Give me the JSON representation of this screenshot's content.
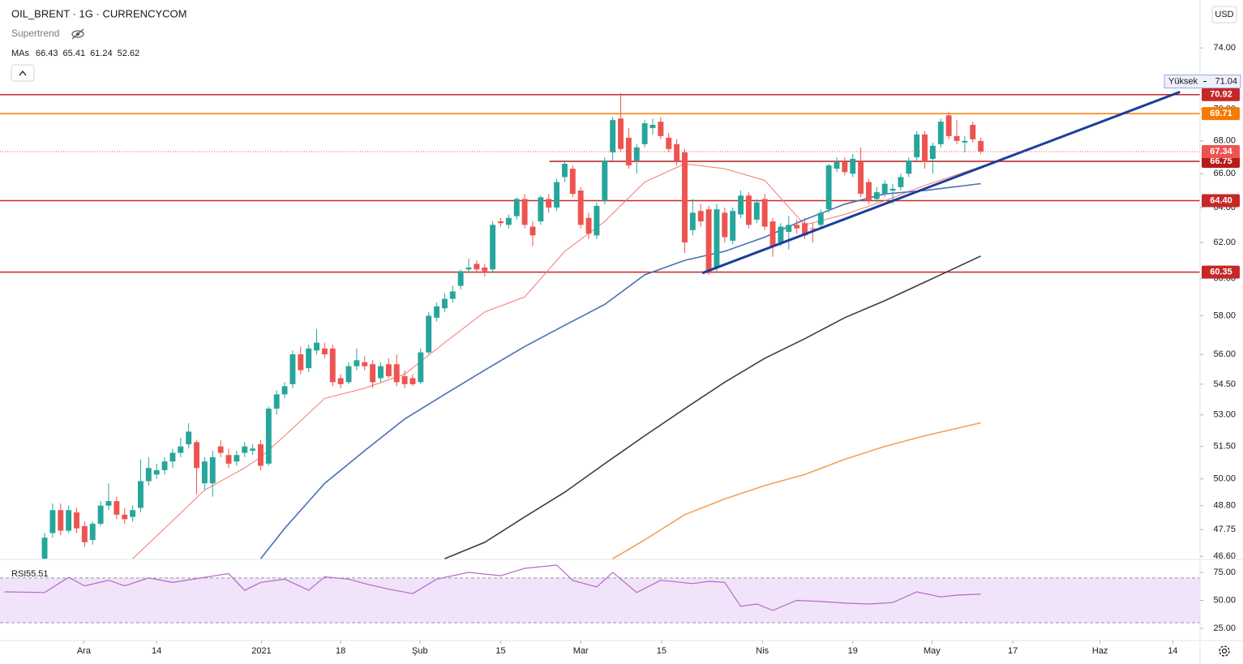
{
  "header": {
    "symbol": "OIL_BRENT · 1G · CURRENCYCOM",
    "indicator": "Supertrend",
    "mas_label": "MAs",
    "currency": "USD"
  },
  "chart_data": {
    "type": "candlestick",
    "log_scale": true,
    "grid": false,
    "up_color": "#26a69a",
    "down_color": "#ef5350",
    "ylim": [
      46.47,
      77.3
    ],
    "yticks": [
      {
        "value": 74,
        "label": "74.00"
      },
      {
        "value": 70,
        "label": "70.00"
      },
      {
        "value": 68,
        "label": "68.00"
      },
      {
        "value": 66,
        "label": "66.00"
      },
      {
        "value": 64,
        "label": "64.00"
      },
      {
        "value": 62,
        "label": "62.00"
      },
      {
        "value": 60,
        "label": "60.00"
      },
      {
        "value": 58,
        "label": "58.00"
      },
      {
        "value": 56,
        "label": "56.00"
      },
      {
        "value": 54.5,
        "label": "54.50"
      },
      {
        "value": 53,
        "label": "53.00"
      },
      {
        "value": 51.5,
        "label": "51.50"
      },
      {
        "value": 50,
        "label": "50.00"
      },
      {
        "value": 48.8,
        "label": "48.80"
      },
      {
        "value": 47.75,
        "label": "47.75"
      },
      {
        "value": 46.6,
        "label": "46.60"
      }
    ],
    "xlim": [
      -5.07,
      144.4
    ],
    "xticks": [
      {
        "value": 4.9,
        "label": "Ara"
      },
      {
        "value": 14,
        "label": "14"
      },
      {
        "value": 27.1,
        "label": "2021"
      },
      {
        "value": 37,
        "label": "18"
      },
      {
        "value": 46.9,
        "label": "Şub"
      },
      {
        "value": 57,
        "label": "15"
      },
      {
        "value": 67,
        "label": "Mar"
      },
      {
        "value": 77.1,
        "label": "15"
      },
      {
        "value": 89.7,
        "label": "Nis"
      },
      {
        "value": 101,
        "label": "19"
      },
      {
        "value": 110.9,
        "label": "May"
      },
      {
        "value": 121,
        "label": "17"
      },
      {
        "value": 131.9,
        "label": "Haz"
      },
      {
        "value": 141,
        "label": "14"
      }
    ],
    "open": [
      46.5,
      47.6,
      48.6,
      47.7,
      48.5,
      47.9,
      47.3,
      48.0,
      48.8,
      49.0,
      48.4,
      48.3,
      48.7,
      49.9,
      50.2,
      50.4,
      50.8,
      51.2,
      51.6,
      51.7,
      49.8,
      49.8,
      51.5,
      51.1,
      50.8,
      51.2,
      51.3,
      51.6,
      50.7,
      53.3,
      54.0,
      54.5,
      56.0,
      55.3,
      56.2,
      56.3,
      56.3,
      54.8,
      54.6,
      55.4,
      55.6,
      55.5,
      54.8,
      55.5,
      55.5,
      54.9,
      54.8,
      54.6,
      56.1,
      57.9,
      58.4,
      58.9,
      59.6,
      60.5,
      60.8,
      60.6,
      60.5,
      63.2,
      63.0,
      63.5,
      64.5,
      62.9,
      63.2,
      64.5,
      64.0,
      65.8,
      66.3,
      65.0,
      63.4,
      62.4,
      64.4,
      67.3,
      69.4,
      68.2,
      66.8,
      67.8,
      68.8,
      69.2,
      68.2,
      67.8,
      67.3,
      62.7,
      63.8,
      63.9,
      60.6,
      63.7,
      62.1,
      63.6,
      64.7,
      63.3,
      64.5,
      63.2,
      62.0,
      62.6,
      63.0,
      63.1,
      62.8,
      63.0,
      63.9,
      66.3,
      66.7,
      66.0,
      66.7,
      65.5,
      64.5,
      64.8,
      65.0,
      65.2,
      66.0,
      67.0,
      68.4,
      66.9,
      67.8,
      69.6,
      68.3,
      67.9,
      69.0,
      68.0
    ],
    "high": [
      47.6,
      48.9,
      48.9,
      48.8,
      48.7,
      48.1,
      48.1,
      49.0,
      49.8,
      49.2,
      48.7,
      48.8,
      50.9,
      51.0,
      50.7,
      51.0,
      51.4,
      51.9,
      52.6,
      51.8,
      51.0,
      51.3,
      51.8,
      51.4,
      51.3,
      51.7,
      51.6,
      51.8,
      53.4,
      54.2,
      54.6,
      56.2,
      56.4,
      56.5,
      57.3,
      56.6,
      56.5,
      55.0,
      55.6,
      56.3,
      55.9,
      55.7,
      55.6,
      55.8,
      56.0,
      55.2,
      55.0,
      56.3,
      58.2,
      58.7,
      59.2,
      59.6,
      60.5,
      61.1,
      61.0,
      60.8,
      63.2,
      63.4,
      63.6,
      64.6,
      64.8,
      63.2,
      64.7,
      64.8,
      65.7,
      66.8,
      66.5,
      65.2,
      63.7,
      64.3,
      67.0,
      69.5,
      71.04,
      68.8,
      67.8,
      69.3,
      69.4,
      69.5,
      68.5,
      68.1,
      67.5,
      64.5,
      64.2,
      64.1,
      64.2,
      64.0,
      64.0,
      65.0,
      64.9,
      64.5,
      64.8,
      63.4,
      63.1,
      63.5,
      63.3,
      63.4,
      63.1,
      63.9,
      66.6,
      67.0,
      67.0,
      67.2,
      67.6,
      65.7,
      65.2,
      65.6,
      65.4,
      66.0,
      67.0,
      68.6,
      68.6,
      67.9,
      69.4,
      69.8,
      69.3,
      68.3,
      69.2,
      68.2
    ],
    "low": [
      46.4,
      47.4,
      47.5,
      47.6,
      47.6,
      47.0,
      47.1,
      47.9,
      48.6,
      48.2,
      48.0,
      48.1,
      48.5,
      49.7,
      50.0,
      50.2,
      50.5,
      51.0,
      51.4,
      49.3,
      49.5,
      49.2,
      51.0,
      50.5,
      50.6,
      51.0,
      51.1,
      50.4,
      50.6,
      53.0,
      53.8,
      54.3,
      55.0,
      55.1,
      56.0,
      55.8,
      54.4,
      54.3,
      54.5,
      55.2,
      55.2,
      54.3,
      54.6,
      54.8,
      54.4,
      54.3,
      54.4,
      54.5,
      56.0,
      57.7,
      58.2,
      58.7,
      59.4,
      60.3,
      60.3,
      60.1,
      60.3,
      62.9,
      62.8,
      63.3,
      62.8,
      61.8,
      63.0,
      63.7,
      63.8,
      65.5,
      64.6,
      62.8,
      62.2,
      62.2,
      64.2,
      66.8,
      67.3,
      66.3,
      66.0,
      67.6,
      68.4,
      68.1,
      67.3,
      66.5,
      61.4,
      62.4,
      62.9,
      60.2,
      60.4,
      62.0,
      61.9,
      63.4,
      62.8,
      63.1,
      62.7,
      61.2,
      61.8,
      61.6,
      62.5,
      62.2,
      62.0,
      62.8,
      63.7,
      66.1,
      65.9,
      65.8,
      64.6,
      64.2,
      64.3,
      64.6,
      64.2,
      65.0,
      65.8,
      66.8,
      66.3,
      66.0,
      67.6,
      68.1,
      67.8,
      67.3,
      67.9,
      67.2
    ],
    "close": [
      47.4,
      48.6,
      47.7,
      48.6,
      47.8,
      47.2,
      48.0,
      48.8,
      49.0,
      48.4,
      48.2,
      48.6,
      49.9,
      50.5,
      50.4,
      50.8,
      51.2,
      51.5,
      52.2,
      50.5,
      50.8,
      51.0,
      51.2,
      50.7,
      51.1,
      51.5,
      51.4,
      50.6,
      53.3,
      54.0,
      54.4,
      56.0,
      55.2,
      56.3,
      56.6,
      56.0,
      54.6,
      54.5,
      55.4,
      55.7,
      55.4,
      54.6,
      55.4,
      54.9,
      54.6,
      54.5,
      54.5,
      56.1,
      58.0,
      58.5,
      58.9,
      59.3,
      60.4,
      60.6,
      60.5,
      60.4,
      63.0,
      63.1,
      63.4,
      64.5,
      63.0,
      62.4,
      64.6,
      64.0,
      65.5,
      66.6,
      64.8,
      63.0,
      62.5,
      64.1,
      66.8,
      69.3,
      67.5,
      66.5,
      67.6,
      69.1,
      69.0,
      68.3,
      67.5,
      66.8,
      62.0,
      63.7,
      63.2,
      60.3,
      63.9,
      62.3,
      63.8,
      64.7,
      63.0,
      64.3,
      62.9,
      61.8,
      62.9,
      63.0,
      62.8,
      62.4,
      62.75,
      63.7,
      66.5,
      66.7,
      66.1,
      66.9,
      64.8,
      64.4,
      64.9,
      65.4,
      65.1,
      65.8,
      66.8,
      68.4,
      66.7,
      67.7,
      69.2,
      68.3,
      68.0,
      68.0,
      68.1,
      67.34
    ],
    "high_label": "Yüksek",
    "moving_averages": [
      {
        "color": "#f07b72",
        "x": [
          11,
          15,
          20,
          25,
          27,
          30,
          35,
          40,
          45,
          50,
          55,
          60,
          65,
          70,
          75,
          80,
          85,
          90,
          95,
          100,
          105,
          110,
          117
        ],
        "values": [
          46.5,
          47.8,
          49.5,
          50.5,
          51.0,
          52.0,
          53.8,
          54.3,
          55.0,
          56.6,
          58.2,
          59.0,
          61.5,
          63.2,
          65.5,
          66.6,
          66.3,
          65.6,
          63.0,
          63.6,
          64.4,
          65.3,
          66.43
        ]
      },
      {
        "color": "#4a6fb5",
        "x": [
          27,
          30,
          35,
          40,
          45,
          50,
          55,
          60,
          65,
          70,
          75,
          80,
          85,
          90,
          95,
          100,
          105,
          110,
          117
        ],
        "values": [
          46.5,
          47.8,
          49.8,
          51.3,
          52.8,
          54.0,
          55.2,
          56.4,
          57.5,
          58.6,
          60.2,
          61.0,
          61.5,
          62.3,
          63.3,
          64.2,
          64.8,
          65.0,
          65.41
        ]
      },
      {
        "color": "#3d3d3d",
        "x": [
          50,
          55,
          60,
          65,
          70,
          75,
          80,
          85,
          90,
          95,
          100,
          105,
          110,
          117
        ],
        "values": [
          46.5,
          47.2,
          48.3,
          49.4,
          50.7,
          52.0,
          53.3,
          54.6,
          55.8,
          56.8,
          57.9,
          58.8,
          59.8,
          61.24
        ]
      },
      {
        "color": "#f5a054",
        "x": [
          71,
          75,
          80,
          85,
          90,
          95,
          100,
          105,
          110,
          117
        ],
        "values": [
          46.5,
          47.3,
          48.4,
          49.1,
          49.7,
          50.2,
          50.9,
          51.5,
          52.0,
          52.62
        ]
      }
    ],
    "hlines": [
      {
        "value": 70.92,
        "color": "#c62828"
      },
      {
        "value": 69.71,
        "color": "#f57c00"
      },
      {
        "value": 66.75,
        "color": "#b71c1c",
        "start": 63.1
      },
      {
        "value": 64.4,
        "label": "64.40",
        "color": "#c62828"
      },
      {
        "value": 60.35,
        "color": "#c62828"
      }
    ],
    "trendline": {
      "color": "#1a3f9b",
      "x": [
        82.2,
        141.9
      ],
      "values": [
        60.3,
        71.1
      ]
    }
  },
  "rsi": {
    "type": "line",
    "name": "RSI",
    "color": "#b36bc4",
    "band_color": "#f1e3fa",
    "ylim": [
      14.1,
      86.6
    ],
    "yticks": [
      {
        "value": 75,
        "label": "75.00"
      },
      {
        "value": 50,
        "label": "50.00"
      },
      {
        "value": 25,
        "label": "25.00"
      }
    ],
    "band": [
      30,
      70
    ],
    "x": [
      -5,
      0,
      3,
      5,
      8,
      10,
      13,
      16,
      20,
      23,
      25,
      27,
      30,
      33,
      35,
      38,
      40,
      43,
      46,
      49,
      53,
      57,
      60,
      64,
      66,
      69,
      71,
      74,
      77,
      81,
      83,
      85,
      87,
      89,
      91,
      94,
      97,
      100,
      103,
      106,
      109,
      112,
      114,
      117
    ],
    "values": [
      57.6,
      57,
      70.6,
      63,
      68,
      63,
      70,
      66,
      70.6,
      74,
      59,
      66,
      69,
      59,
      71,
      69,
      65,
      60,
      56,
      69,
      75,
      72,
      78.6,
      81.5,
      67.8,
      62,
      75,
      57,
      68,
      65,
      67,
      66,
      44.6,
      46.7,
      41,
      50,
      49,
      47.5,
      46.7,
      48,
      57.6,
      53,
      54.7,
      55.51
    ]
  }
}
